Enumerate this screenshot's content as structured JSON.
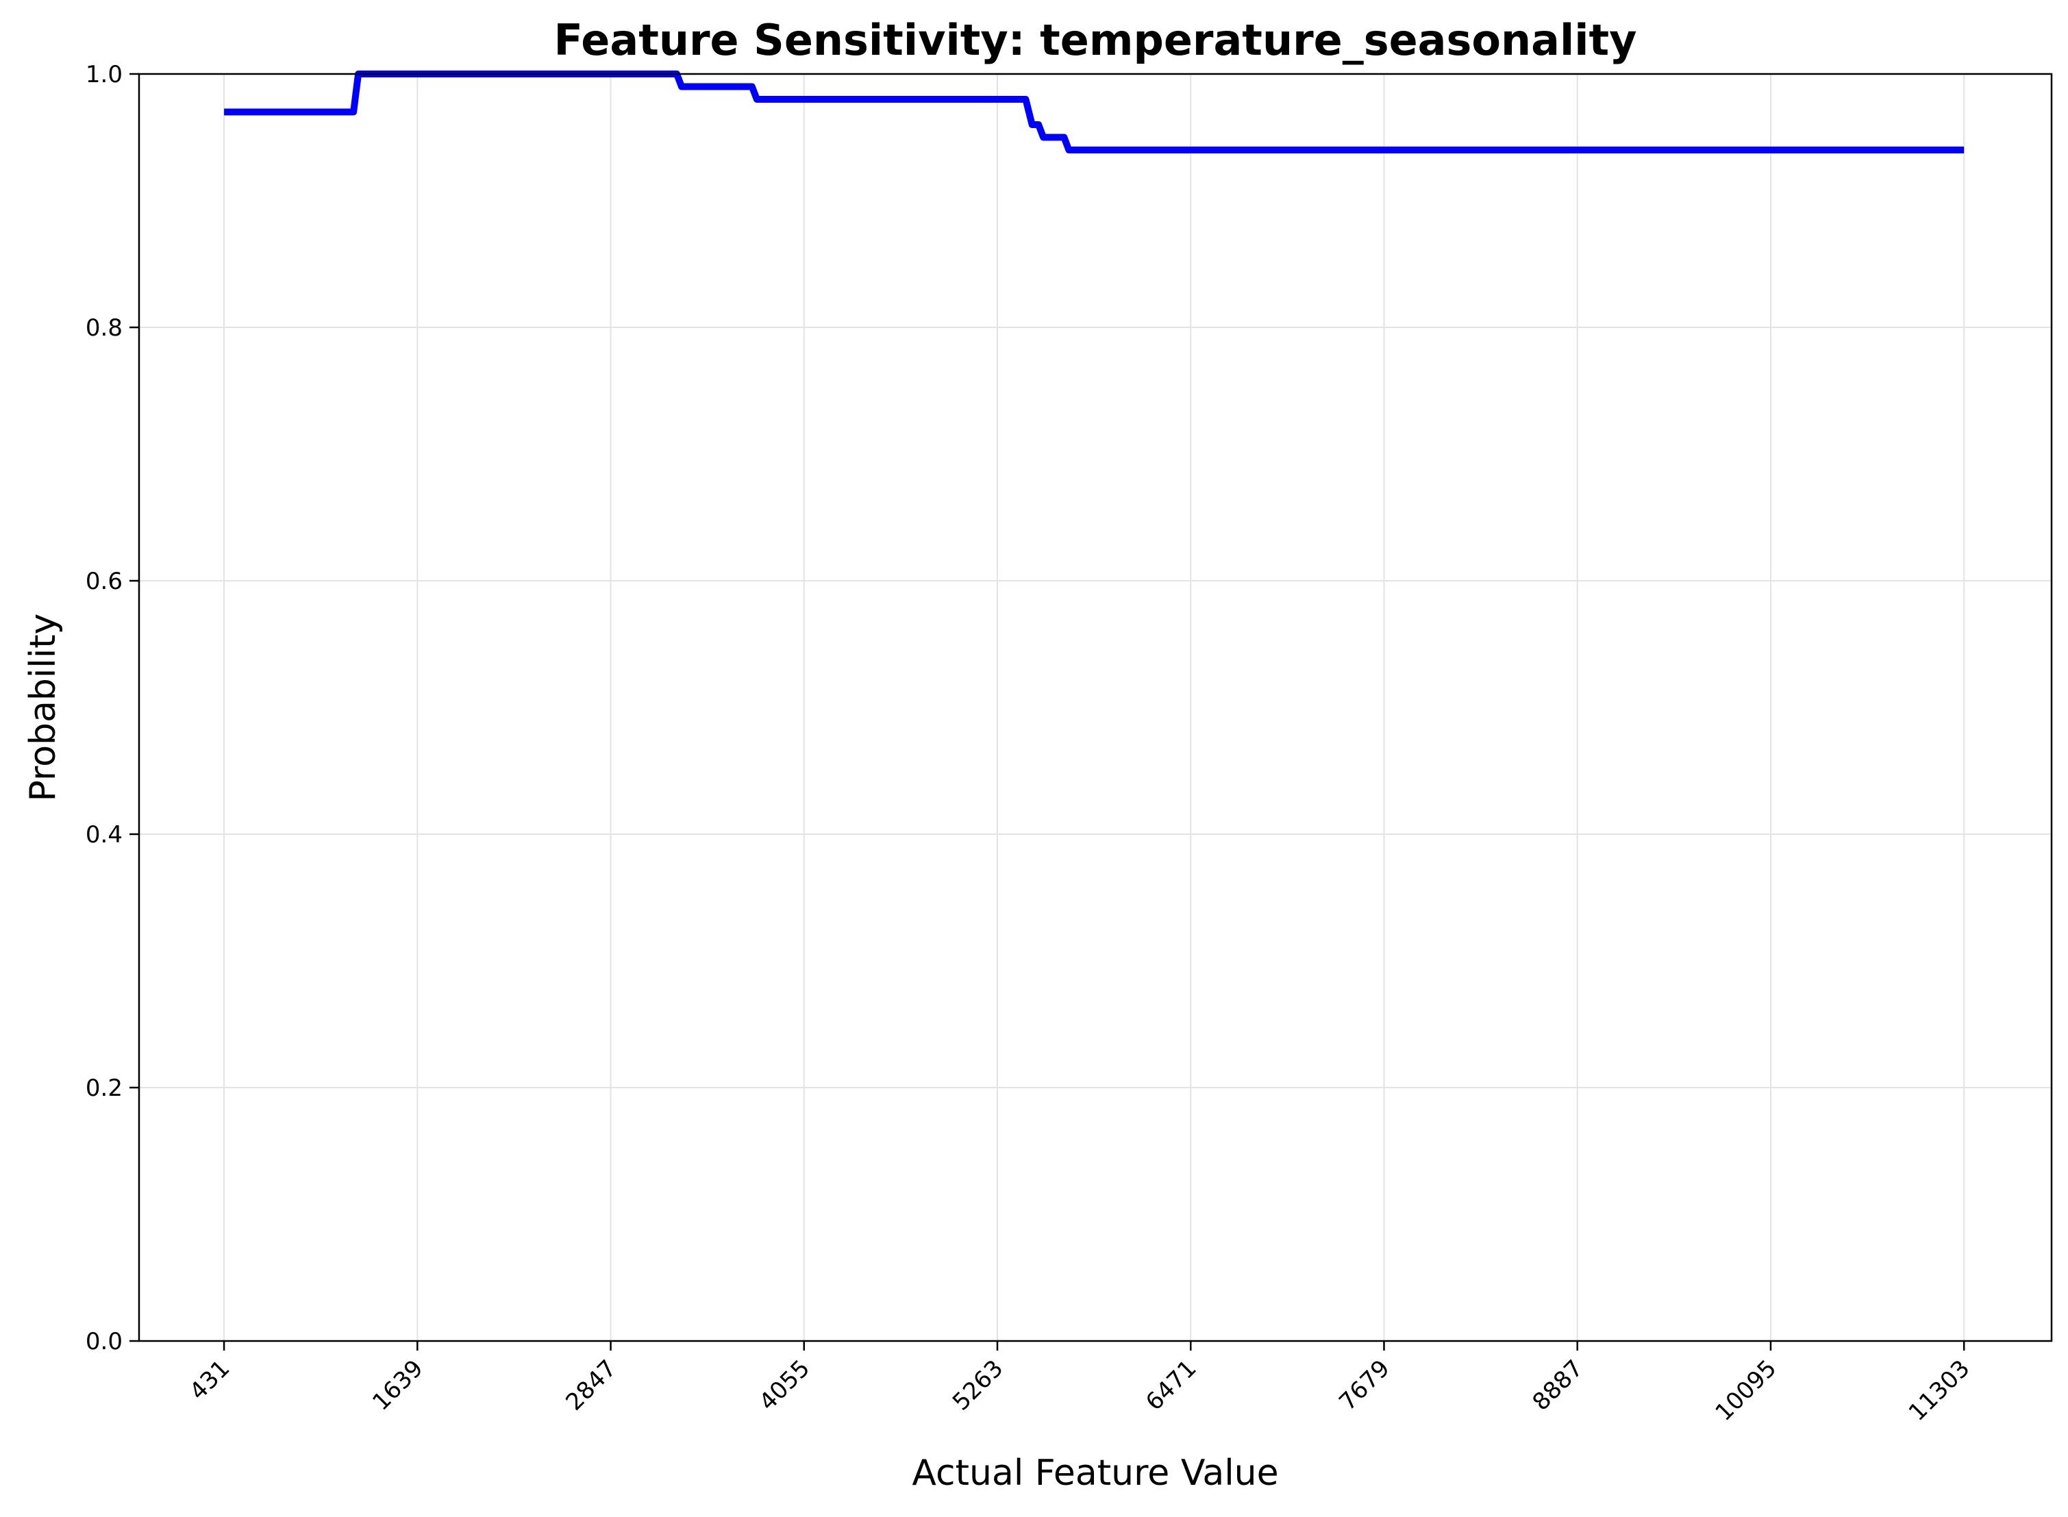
{
  "chart_data": {
    "type": "line",
    "title": "Feature Sensitivity: temperature_seasonality",
    "xlabel": "Actual Feature Value",
    "ylabel": "Probability",
    "xlim": [
      -100,
      11850
    ],
    "ylim": [
      0,
      1.0
    ],
    "x_ticks": [
      431,
      1639,
      2847,
      4055,
      5263,
      6471,
      7679,
      8887,
      10095,
      11303
    ],
    "x_tick_labels": [
      "431",
      "1639",
      "2847",
      "4055",
      "5263",
      "6471",
      "7679",
      "8887",
      "10095",
      "11303"
    ],
    "y_ticks": [
      0.0,
      0.2,
      0.4,
      0.6,
      0.8,
      1.0
    ],
    "y_tick_labels": [
      "0.0",
      "0.2",
      "0.4",
      "0.6",
      "0.8",
      "1.0"
    ],
    "grid": true,
    "line_color": "#0000ff",
    "series": [
      {
        "x": [
          431,
          1240,
          1270,
          3260,
          3290,
          3730,
          3760,
          5440,
          5480,
          5520,
          5550,
          5680,
          5710,
          11303
        ],
        "y": [
          0.97,
          0.97,
          1.0,
          1.0,
          0.99,
          0.99,
          0.98,
          0.98,
          0.96,
          0.96,
          0.95,
          0.95,
          0.94,
          0.94
        ]
      }
    ]
  }
}
